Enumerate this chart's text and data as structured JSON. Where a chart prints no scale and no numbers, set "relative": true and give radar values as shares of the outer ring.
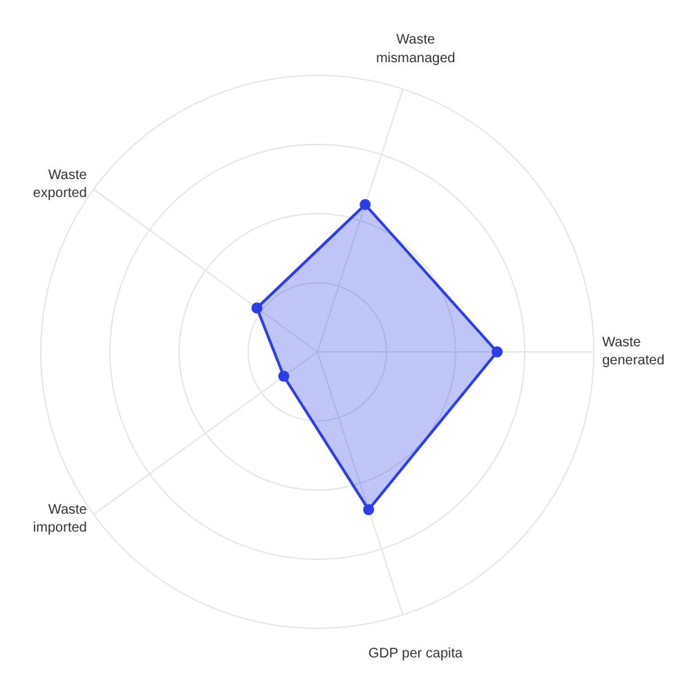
{
  "chart_data": {
    "type": "radar",
    "relative": true,
    "categories": [
      "Waste\nmismanaged",
      "Waste\ngenerated",
      "GDP per capita",
      "Waste\nimported",
      "Waste\nexported"
    ],
    "series": [
      {
        "color": "#2e3ee6",
        "values": [
          0.56,
          0.65,
          0.6,
          0.15,
          0.27
        ]
      }
    ],
    "marker": "circle",
    "grid": true
  }
}
